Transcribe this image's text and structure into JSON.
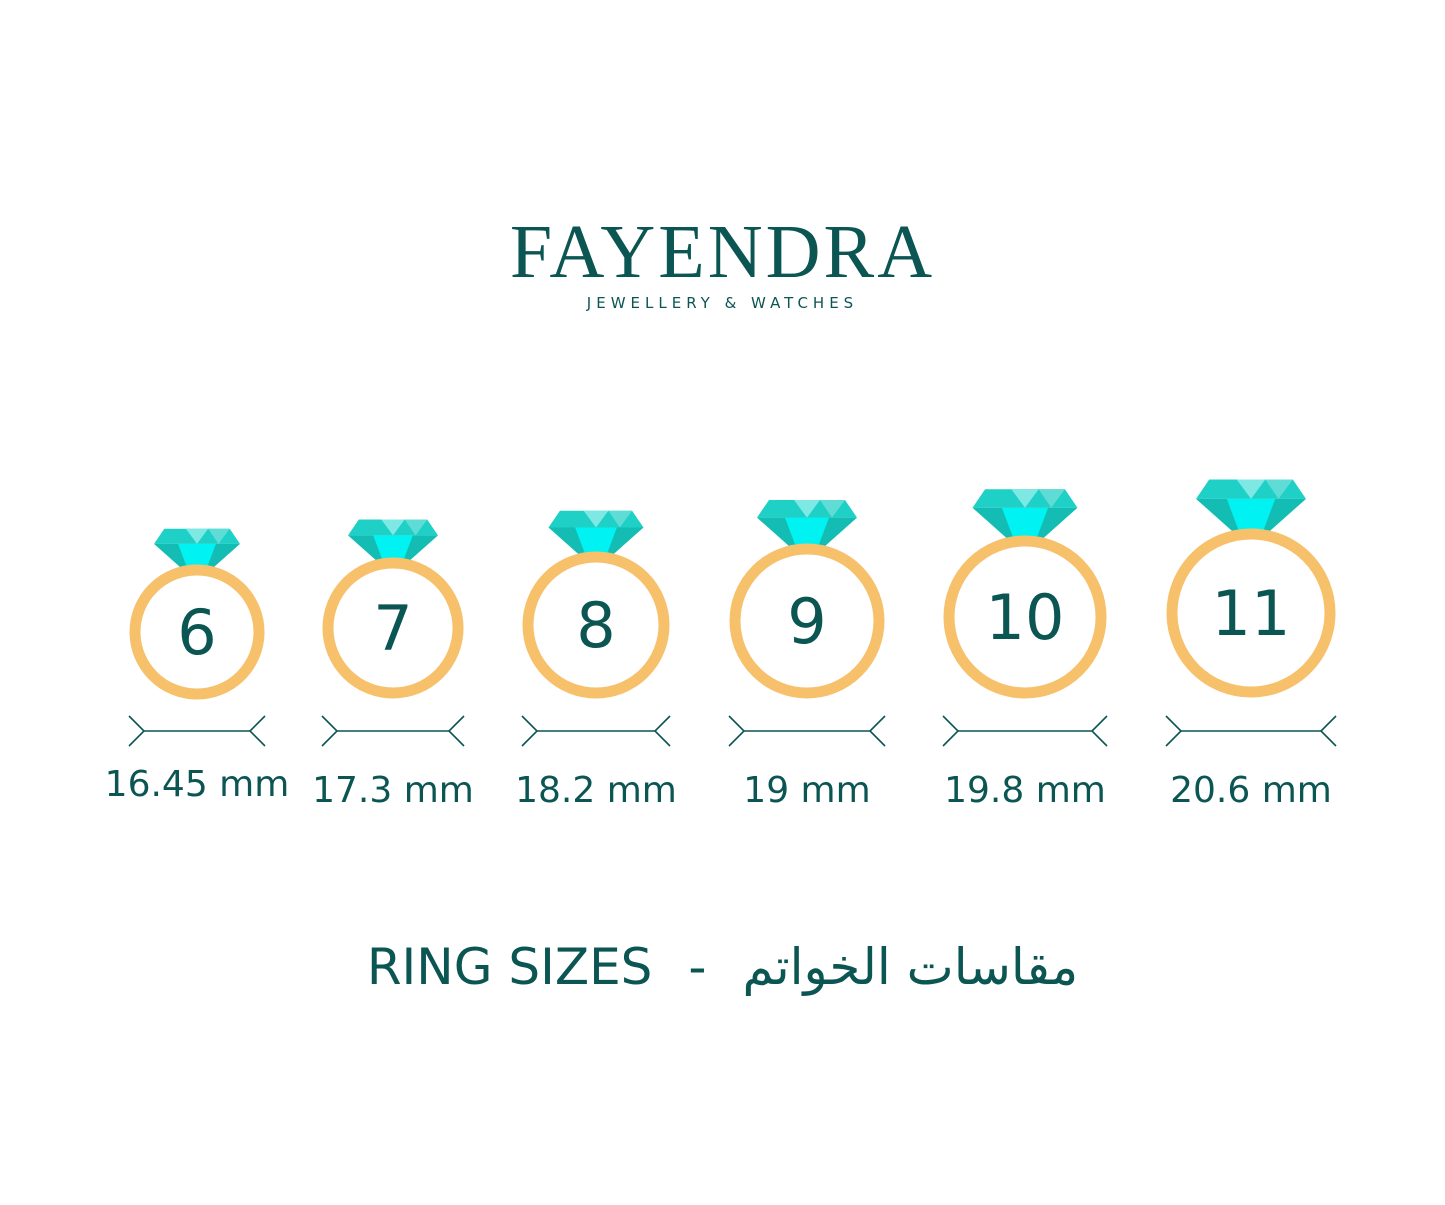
{
  "brand": {
    "name": "FAYENDRA",
    "tagline": "JEWELLERY & WATCHES"
  },
  "colors": {
    "text": "#0b5553",
    "ring": "#f7c06b",
    "gem": [
      "#1fd0c6",
      "#7ee9e4",
      "#00f2f2",
      "#14bdb3",
      "#5fdcd6"
    ]
  },
  "rings": [
    {
      "size": "6",
      "diameter": "16.45 mm"
    },
    {
      "size": "7",
      "diameter": "17.3 mm"
    },
    {
      "size": "8",
      "diameter": "18.2 mm"
    },
    {
      "size": "9",
      "diameter": "19 mm"
    },
    {
      "size": "10",
      "diameter": "19.8 mm"
    },
    {
      "size": "11",
      "diameter": "20.6 mm"
    }
  ],
  "footer": {
    "title_en": "RING SIZES",
    "separator": "-",
    "title_ar": "مقاسات الخواتم"
  }
}
